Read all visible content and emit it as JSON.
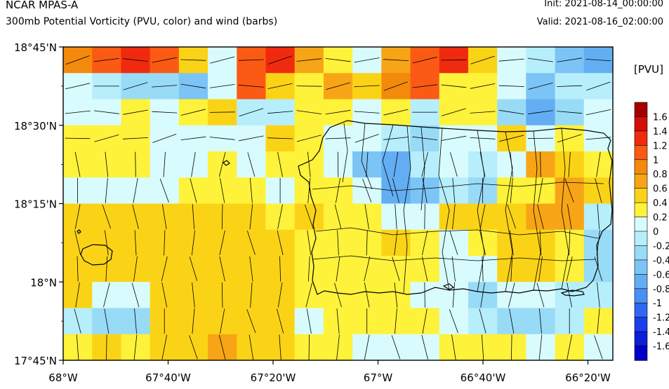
{
  "header": {
    "title": "NCAR MPAS-A",
    "subtitle": "300mb Potential Vorticity (PVU, color) and wind (barbs)",
    "init": "Init: 2021-08-14_00:00:00",
    "valid": "Valid: 2021-08-16_02:00:00"
  },
  "map": {
    "lat_ticks": [
      "18°45'N",
      "18°30'N",
      "18°15'N",
      "18°N",
      "17°45'N"
    ],
    "lon_ticks": [
      "68°W",
      "67°40'W",
      "67°20'W",
      "67°W",
      "66°40'W",
      "66°20'W"
    ],
    "lat_range": [
      17.75,
      18.75
    ],
    "lon_range": [
      -68.0,
      -66.25
    ],
    "coastline_color": "#000000",
    "barb_color": "#000000"
  },
  "colorbar": {
    "units": "[PVU]",
    "levels": [
      "1.6",
      "1.4",
      "1.2",
      "1",
      "0.8",
      "0.6",
      "0.4",
      "0.2",
      "0",
      "-0.2",
      "-0.4",
      "-0.6",
      "-0.8",
      "-1",
      "-1.2",
      "-1.4",
      "-1.6"
    ],
    "colors": [
      "#a50000",
      "#d21008",
      "#f02a0e",
      "#fb5a14",
      "#f38a0c",
      "#f7a516",
      "#fbd316",
      "#fff23a",
      "#d8fbfe",
      "#b6eefc",
      "#98dbf6",
      "#7cc4f5",
      "#63aef3",
      "#4a8ff2",
      "#2f67f0",
      "#1a3ded",
      "#0a1fd6",
      "#0000c8"
    ]
  },
  "chart_data": {
    "type": "heatmap",
    "title": "300mb Potential Vorticity (PVU, color) and wind (barbs)",
    "units": "PVU",
    "grid": [
      [
        13,
        14,
        15,
        14,
        11,
        9,
        14,
        15,
        12,
        10,
        9,
        12,
        14,
        15,
        11,
        9,
        8,
        6,
        5
      ],
      [
        9,
        8,
        7,
        7,
        6,
        9,
        14,
        11,
        10,
        12,
        11,
        13,
        14,
        10,
        10,
        9,
        6,
        8,
        8
      ],
      [
        9,
        9,
        10,
        9,
        10,
        11,
        8,
        8,
        10,
        10,
        9,
        10,
        8,
        10,
        10,
        7,
        5,
        7,
        9
      ],
      [
        10,
        10,
        10,
        9,
        9,
        9,
        9,
        11,
        10,
        9,
        9,
        8,
        7,
        9,
        9,
        11,
        9,
        10,
        9
      ],
      [
        10,
        10,
        10,
        9,
        9,
        10,
        9,
        10,
        10,
        9,
        6,
        5,
        8,
        9,
        8,
        9,
        12,
        11,
        10
      ],
      [
        9,
        9,
        9,
        9,
        10,
        10,
        10,
        9,
        10,
        10,
        9,
        5,
        6,
        8,
        7,
        10,
        10,
        12,
        11
      ],
      [
        11,
        11,
        11,
        11,
        11,
        11,
        11,
        10,
        11,
        10,
        10,
        9,
        9,
        11,
        11,
        11,
        12,
        12,
        8
      ],
      [
        11,
        11,
        11,
        11,
        11,
        11,
        11,
        11,
        10,
        10,
        10,
        11,
        10,
        9,
        10,
        11,
        11,
        10,
        7
      ],
      [
        11,
        11,
        11,
        11,
        11,
        11,
        11,
        11,
        10,
        10,
        10,
        10,
        10,
        9,
        9,
        11,
        11,
        10,
        7
      ],
      [
        11,
        9,
        9,
        11,
        11,
        11,
        11,
        11,
        10,
        10,
        10,
        10,
        9,
        9,
        7,
        9,
        9,
        8,
        8
      ],
      [
        8,
        7,
        7,
        11,
        11,
        11,
        11,
        11,
        9,
        10,
        10,
        10,
        10,
        9,
        8,
        7,
        7,
        8,
        10
      ],
      [
        10,
        11,
        10,
        11,
        11,
        12,
        11,
        11,
        10,
        10,
        9,
        9,
        9,
        10,
        10,
        10,
        9,
        10,
        9
      ]
    ],
    "grid_note": "indices into colorbar.colors from lowest (-1.6) to highest (1.6)",
    "xlim": [
      -68.0,
      -66.25
    ],
    "ylim": [
      17.75,
      18.75
    ]
  }
}
